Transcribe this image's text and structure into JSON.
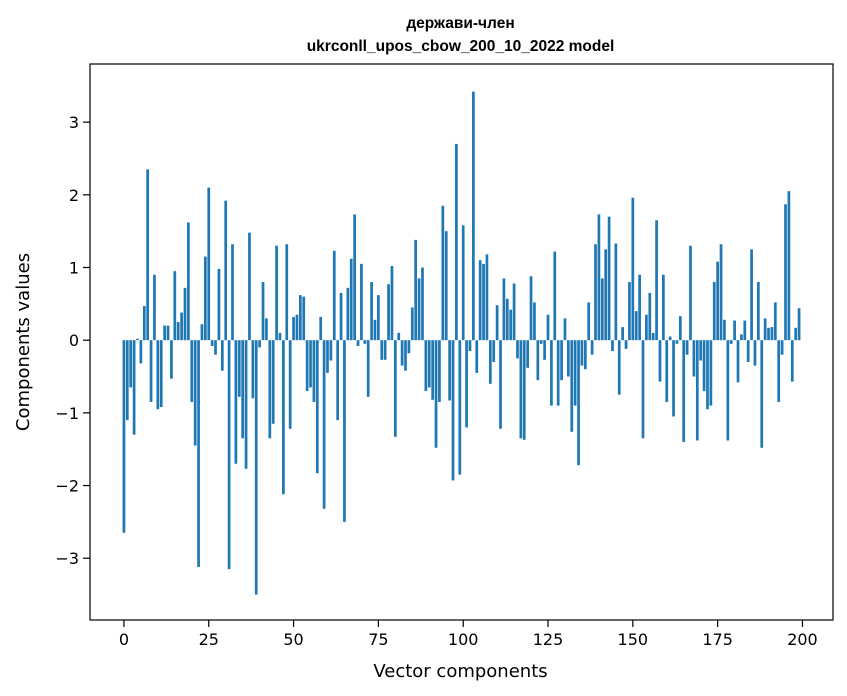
{
  "chart_data": {
    "type": "bar",
    "title_line1": "держави-член",
    "title_line2": "ukrconll_upos_cbow_200_10_2022 model",
    "xlabel": "Vector components",
    "ylabel": "Components values",
    "xlim": [
      -10,
      209
    ],
    "ylim": [
      -3.85,
      3.8
    ],
    "xticks": [
      0,
      25,
      50,
      75,
      100,
      125,
      150,
      175,
      200
    ],
    "yticks": [
      -3,
      -2,
      -1,
      0,
      1,
      2,
      3
    ],
    "color": "#1f77b4",
    "grid": false,
    "legend": false,
    "values": [
      -2.65,
      -1.1,
      -0.65,
      -1.3,
      0.02,
      -0.32,
      0.47,
      2.35,
      -0.85,
      0.9,
      -0.95,
      -0.92,
      0.2,
      0.2,
      -0.53,
      0.95,
      0.25,
      0.38,
      0.72,
      1.62,
      -0.85,
      -1.45,
      -3.12,
      0.22,
      1.15,
      2.1,
      -0.08,
      -0.2,
      0.98,
      -0.42,
      1.92,
      -3.15,
      1.32,
      -1.7,
      -0.78,
      -1.35,
      -1.77,
      1.48,
      -0.8,
      -3.5,
      -0.1,
      0.8,
      0.3,
      -1.35,
      -1.15,
      1.3,
      0.1,
      -2.12,
      1.32,
      -1.22,
      0.32,
      0.35,
      0.62,
      0.6,
      -0.7,
      -0.65,
      -0.85,
      -1.83,
      0.32,
      -2.32,
      -0.45,
      -0.28,
      1.23,
      -1.1,
      0.65,
      -2.5,
      0.72,
      1.12,
      1.73,
      -0.08,
      1.05,
      -0.05,
      -0.78,
      0.8,
      0.28,
      0.62,
      -0.27,
      -0.27,
      0.77,
      1.02,
      -1.33,
      0.1,
      -0.35,
      -0.42,
      -0.18,
      0.45,
      1.38,
      0.85,
      1.0,
      -0.7,
      -0.65,
      -0.82,
      -1.48,
      -0.85,
      1.85,
      1.5,
      -0.83,
      -1.93,
      2.7,
      -1.85,
      1.58,
      -1.2,
      -0.15,
      3.42,
      -0.45,
      1.1,
      1.05,
      1.18,
      -0.6,
      -0.3,
      0.48,
      -1.22,
      0.85,
      0.57,
      0.42,
      0.78,
      -0.25,
      -1.35,
      -1.37,
      -0.38,
      0.88,
      0.52,
      -0.55,
      -0.05,
      -0.27,
      0.35,
      -0.9,
      1.22,
      -0.9,
      -0.55,
      0.3,
      -0.5,
      -1.26,
      -0.9,
      -1.72,
      -0.35,
      -0.4,
      0.52,
      -0.2,
      1.32,
      1.73,
      0.85,
      1.25,
      1.7,
      -0.15,
      1.33,
      -0.75,
      0.18,
      -0.12,
      0.8,
      1.96,
      0.4,
      0.9,
      -1.35,
      0.35,
      0.65,
      0.1,
      1.65,
      -0.57,
      0.9,
      -0.85,
      0.05,
      -1.05,
      -0.05,
      0.33,
      -1.4,
      -0.2,
      1.3,
      -0.5,
      -1.38,
      -0.28,
      -0.7,
      -0.95,
      -0.9,
      0.8,
      1.08,
      1.32,
      0.28,
      -1.38,
      -0.05,
      0.27,
      -0.58,
      0.08,
      0.27,
      -0.3,
      1.25,
      -0.35,
      0.8,
      -1.48,
      0.3,
      0.17,
      0.18,
      0.52,
      -0.85,
      -0.2,
      1.87,
      2.05,
      -0.57,
      0.17,
      0.44
    ]
  }
}
